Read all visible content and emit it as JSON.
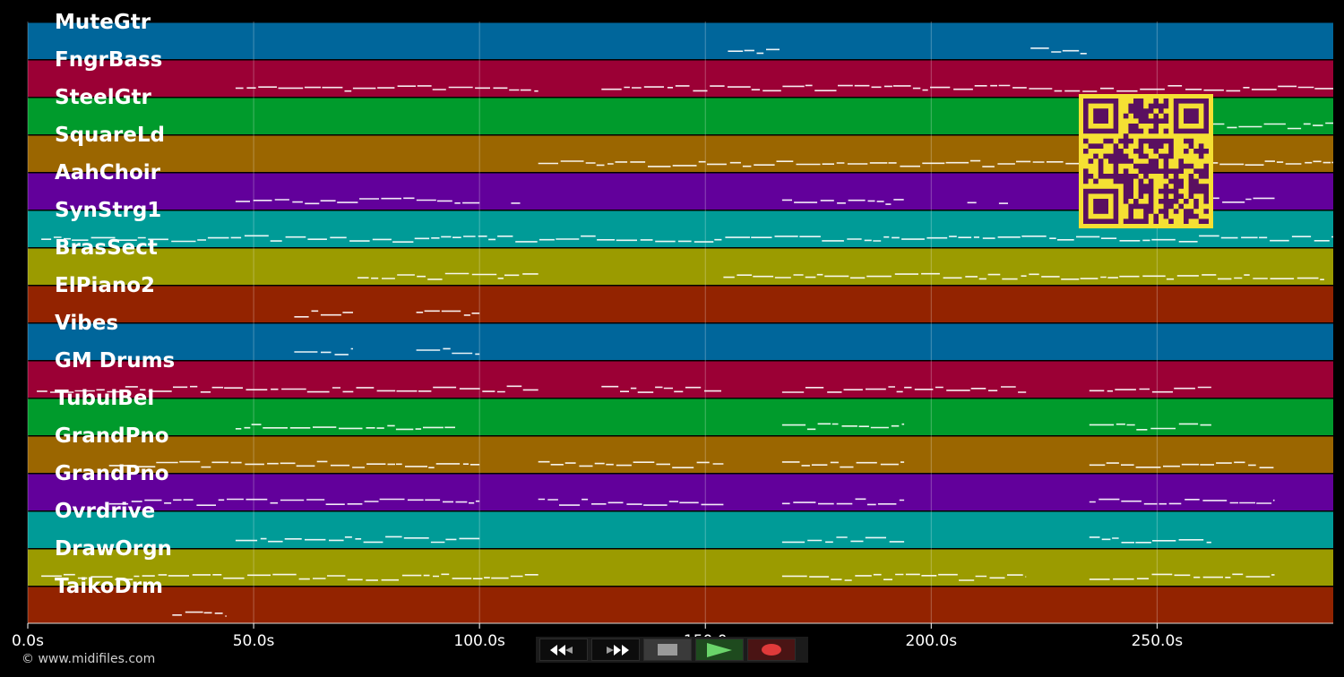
{
  "tracks": [
    {
      "name": "MuteGtr",
      "color": "#00669b"
    },
    {
      "name": "FngrBass",
      "color": "#9b0035"
    },
    {
      "name": "SteelGtr",
      "color": "#009b2c"
    },
    {
      "name": "SquareLd",
      "color": "#9b6600"
    },
    {
      "name": "AahChoir",
      "color": "#62009b"
    },
    {
      "name": "SynStrg1",
      "color": "#009b97"
    },
    {
      "name": "BrasSect",
      "color": "#9b9b00"
    },
    {
      "name": "ElPiano2",
      "color": "#932300"
    },
    {
      "name": "Vibes",
      "color": "#00669b"
    },
    {
      "name": "GM Drums",
      "color": "#9b0035"
    },
    {
      "name": "TubulBel",
      "color": "#009b2c"
    },
    {
      "name": "GrandPno",
      "color": "#9b6600"
    },
    {
      "name": "GrandPno",
      "color": "#62009b"
    },
    {
      "name": "Ovrdrive",
      "color": "#009b97"
    },
    {
      "name": "DrawOrgn",
      "color": "#9b9b00"
    },
    {
      "name": "TaikoDrm",
      "color": "#932300"
    }
  ],
  "timeline": {
    "start": 0,
    "end": 289,
    "ticks": [
      {
        "value": 0,
        "label": "0.0s"
      },
      {
        "value": 50,
        "label": "50.0s"
      },
      {
        "value": 100,
        "label": "100.0s"
      },
      {
        "value": 150,
        "label": "150.0"
      },
      {
        "value": 200,
        "label": "200.0s"
      },
      {
        "value": 250,
        "label": "250.0s"
      }
    ]
  },
  "notes": {
    "color": "#ffffff",
    "segments": [
      [
        0,
        155,
        167
      ],
      [
        0,
        222,
        235
      ],
      [
        1,
        46,
        113
      ],
      [
        1,
        127,
        289
      ],
      [
        2,
        262,
        289
      ],
      [
        3,
        113,
        289
      ],
      [
        4,
        46,
        100
      ],
      [
        4,
        107,
        109
      ],
      [
        4,
        167,
        194
      ],
      [
        4,
        208,
        210
      ],
      [
        4,
        215,
        217
      ],
      [
        4,
        262,
        276
      ],
      [
        5,
        3,
        289
      ],
      [
        6,
        73,
        113
      ],
      [
        6,
        154,
        287
      ],
      [
        7,
        59,
        72
      ],
      [
        7,
        86,
        100
      ],
      [
        8,
        59,
        72
      ],
      [
        8,
        86,
        100
      ],
      [
        9,
        2,
        113
      ],
      [
        9,
        127,
        154
      ],
      [
        9,
        167,
        221
      ],
      [
        9,
        235,
        262
      ],
      [
        10,
        46,
        95
      ],
      [
        10,
        167,
        194
      ],
      [
        10,
        235,
        262
      ],
      [
        11,
        18,
        100
      ],
      [
        11,
        113,
        154
      ],
      [
        11,
        167,
        194
      ],
      [
        11,
        235,
        276
      ],
      [
        12,
        18,
        100
      ],
      [
        12,
        113,
        154
      ],
      [
        12,
        167,
        194
      ],
      [
        12,
        235,
        276
      ],
      [
        13,
        46,
        100
      ],
      [
        13,
        167,
        194
      ],
      [
        13,
        235,
        262
      ],
      [
        14,
        3,
        113
      ],
      [
        14,
        167,
        221
      ],
      [
        14,
        235,
        276
      ],
      [
        15,
        32,
        44
      ]
    ]
  },
  "qr_badge": {
    "fg": "#5a1060",
    "bg": "#f5e033"
  },
  "copyright": "© www.midifiles.com",
  "transport": {
    "rewind": "rewind-icon",
    "fast_forward": "fast-forward-icon",
    "stop": "stop-icon",
    "play": "play-icon",
    "record": "record-icon"
  }
}
